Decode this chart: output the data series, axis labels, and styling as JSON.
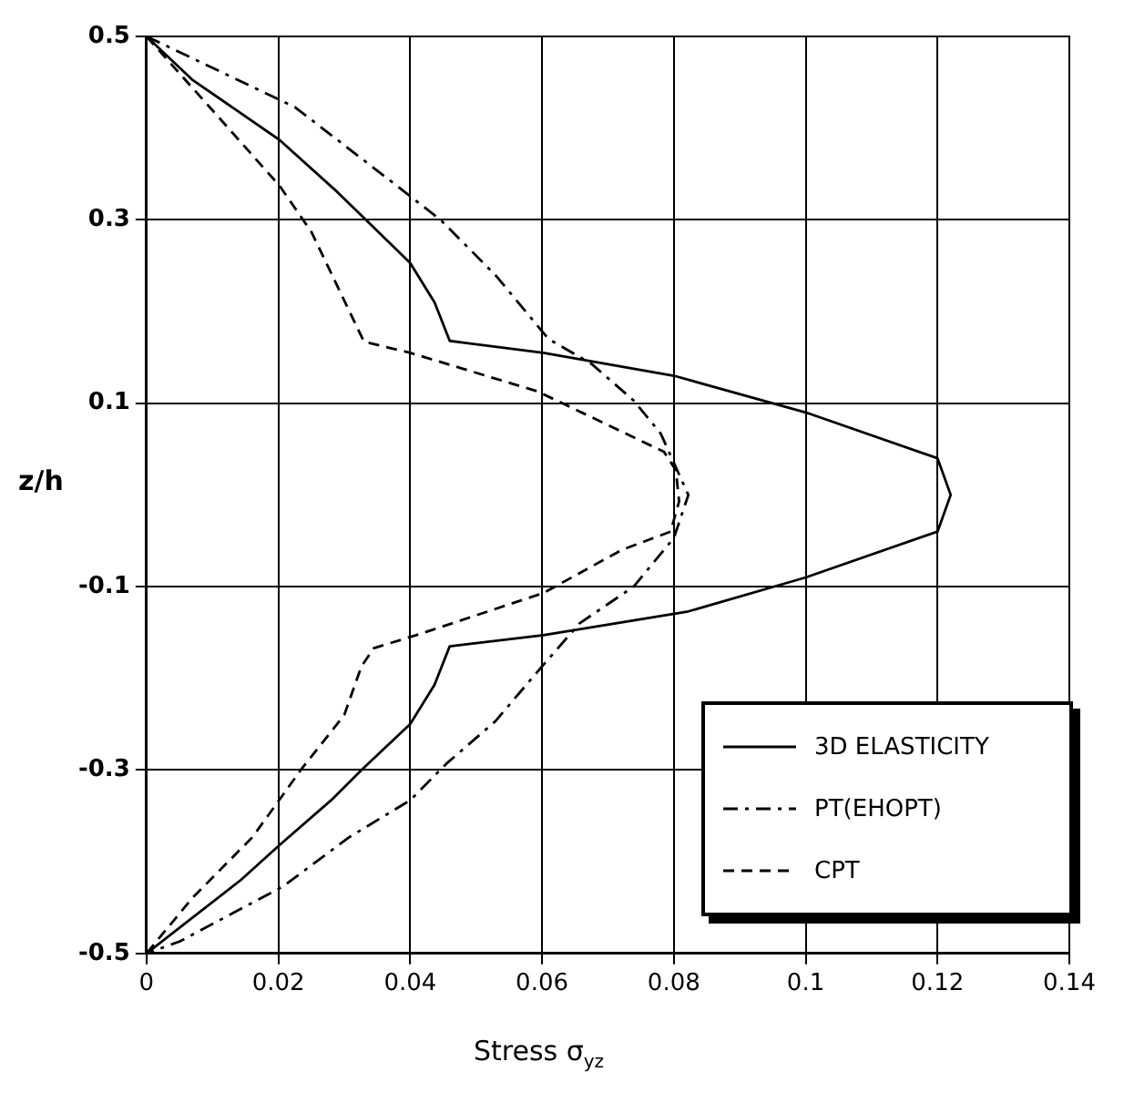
{
  "chart_data": {
    "type": "line",
    "xlabel": "Stress σ$_{yz}$",
    "ylabel": "z/h",
    "xlim": [
      0,
      0.14
    ],
    "xticks": [
      0,
      0.02,
      0.04,
      0.06,
      0.08,
      0.1,
      0.12,
      0.14
    ],
    "ylim": [
      -0.5,
      0.5
    ],
    "yticks": [
      -0.5,
      -0.3,
      -0.1,
      0.1,
      0.3,
      0.5
    ],
    "grid": true,
    "legend": "bottom right",
    "marker": "none",
    "series": [
      {
        "name": "3D ELASTICITY",
        "color": "#000000",
        "line_style": "solid",
        "x": [
          0,
          0.0069,
          0.0202,
          0.029,
          0.04,
          0.0437,
          0.046,
          0.0602,
          0.08,
          0.1,
          0.12,
          0.122,
          0.12,
          0.1,
          0.0822,
          0.0602,
          0.046,
          0.0437,
          0.04,
          0.0326,
          0.028,
          0.02,
          0.0143,
          0
        ],
        "values": [
          0.5,
          0.453,
          0.387,
          0.33,
          0.253,
          0.21,
          0.168,
          0.155,
          0.13,
          0.09,
          0.04,
          0,
          -0.04,
          -0.09,
          -0.127,
          -0.153,
          -0.165,
          -0.207,
          -0.25,
          -0.3,
          -0.333,
          -0.383,
          -0.42,
          -0.5
        ]
      },
      {
        "name": "PT(EHOPT)",
        "color": "#000000",
        "line_style": "dashdot",
        "x": [
          0,
          0.0225,
          0.038,
          0.0446,
          0.0529,
          0.061,
          0.0675,
          0.0739,
          0.078,
          0.0822,
          0.08,
          0.0739,
          0.0657,
          0.06,
          0.0529,
          0.0455,
          0.04,
          0.0308,
          0.0207,
          0.005,
          0
        ],
        "values": [
          0.5,
          0.423,
          0.337,
          0.3,
          0.24,
          0.17,
          0.143,
          0.103,
          0.067,
          0,
          -0.047,
          -0.1,
          -0.14,
          -0.187,
          -0.247,
          -0.293,
          -0.333,
          -0.373,
          -0.427,
          -0.487,
          -0.5
        ]
      },
      {
        "name": "CPT",
        "color": "#000000",
        "line_style": "dashed",
        "x": [
          0,
          0.0087,
          0.0202,
          0.025,
          0.029,
          0.033,
          0.04,
          0.0593,
          0.0785,
          0.0803,
          0.0808,
          0.0795,
          0.0721,
          0.0602,
          0.0409,
          0.0345,
          0.0326,
          0.03,
          0.0234,
          0.0161,
          0.0069,
          0
        ],
        "values": [
          0.5,
          0.43,
          0.337,
          0.287,
          0.227,
          0.167,
          0.155,
          0.113,
          0.047,
          0.027,
          -0.007,
          -0.04,
          -0.06,
          -0.107,
          -0.153,
          -0.167,
          -0.187,
          -0.24,
          -0.3,
          -0.373,
          -0.44,
          -0.5
        ]
      }
    ]
  }
}
